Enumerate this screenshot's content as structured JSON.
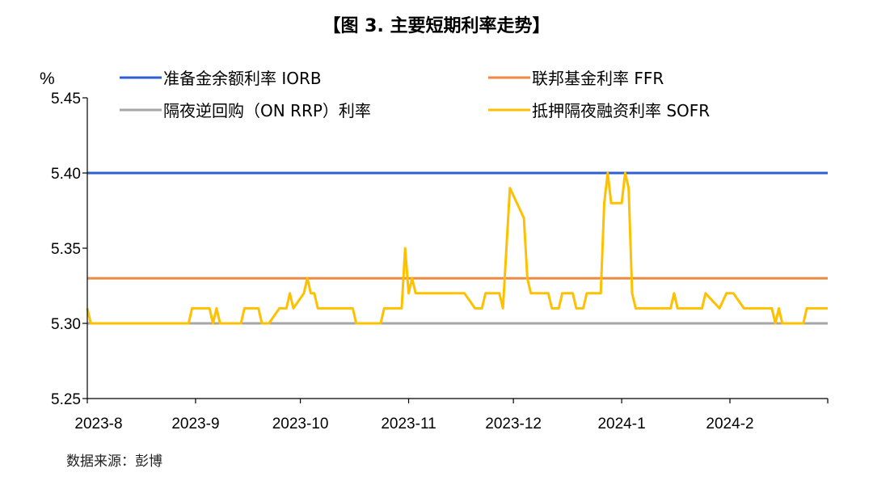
{
  "page": {
    "title": "【图 3. 主要短期利率走势】",
    "source": "数据来源：彭博"
  },
  "chart_data": {
    "type": "line",
    "title": "【图 3. 主要短期利率走势】",
    "ylabel": "%",
    "xlabel": "",
    "ylim": [
      5.25,
      5.45
    ],
    "yticks": [
      "5.25",
      "5.30",
      "5.35",
      "5.40",
      "5.45"
    ],
    "xlim": [
      "2023-08-01",
      "2024-02-29"
    ],
    "xticks": [
      {
        "date": "2023-08-01",
        "label": "2023-8"
      },
      {
        "date": "2023-09-01",
        "label": "2023-9"
      },
      {
        "date": "2023-10-01",
        "label": "2023-10"
      },
      {
        "date": "2023-11-01",
        "label": "2023-11"
      },
      {
        "date": "2023-12-01",
        "label": "2023-12"
      },
      {
        "date": "2024-01-01",
        "label": "2024-1"
      },
      {
        "date": "2024-02-01",
        "label": "2024-2"
      }
    ],
    "grid": false,
    "legend_position": "top",
    "series": [
      {
        "name": "准备金余额利率 IORB",
        "color": "#2e5fd1",
        "points": [
          [
            "2023-08-01",
            5.4
          ],
          [
            "2024-02-29",
            5.4
          ]
        ]
      },
      {
        "name": "联邦基金利率 FFR",
        "color": "#ee8a45",
        "points": [
          [
            "2023-08-01",
            5.33
          ],
          [
            "2024-02-29",
            5.33
          ]
        ]
      },
      {
        "name": "隔夜逆回购（ON RRP）利率",
        "color": "#a6a6a6",
        "points": [
          [
            "2023-08-01",
            5.3
          ],
          [
            "2024-02-29",
            5.3
          ]
        ]
      },
      {
        "name": "抵押隔夜融资利率 SOFR",
        "color": "#ffc000",
        "points": [
          [
            "2023-08-01",
            5.31
          ],
          [
            "2023-08-02",
            5.3
          ],
          [
            "2023-08-30",
            5.3
          ],
          [
            "2023-08-31",
            5.31
          ],
          [
            "2023-09-05",
            5.31
          ],
          [
            "2023-09-06",
            5.3
          ],
          [
            "2023-09-07",
            5.31
          ],
          [
            "2023-09-08",
            5.3
          ],
          [
            "2023-09-14",
            5.3
          ],
          [
            "2023-09-15",
            5.31
          ],
          [
            "2023-09-19",
            5.31
          ],
          [
            "2023-09-20",
            5.3
          ],
          [
            "2023-09-22",
            5.3
          ],
          [
            "2023-09-25",
            5.31
          ],
          [
            "2023-09-27",
            5.31
          ],
          [
            "2023-09-28",
            5.32
          ],
          [
            "2023-09-29",
            5.31
          ],
          [
            "2023-10-02",
            5.32
          ],
          [
            "2023-10-03",
            5.33
          ],
          [
            "2023-10-04",
            5.32
          ],
          [
            "2023-10-05",
            5.32
          ],
          [
            "2023-10-06",
            5.31
          ],
          [
            "2023-10-16",
            5.31
          ],
          [
            "2023-10-17",
            5.3
          ],
          [
            "2023-10-24",
            5.3
          ],
          [
            "2023-10-25",
            5.31
          ],
          [
            "2023-10-30",
            5.31
          ],
          [
            "2023-10-31",
            5.35
          ],
          [
            "2023-11-01",
            5.32
          ],
          [
            "2023-11-02",
            5.33
          ],
          [
            "2023-11-03",
            5.32
          ],
          [
            "2023-11-17",
            5.32
          ],
          [
            "2023-11-20",
            5.31
          ],
          [
            "2023-11-22",
            5.31
          ],
          [
            "2023-11-23",
            5.32
          ],
          [
            "2023-11-27",
            5.32
          ],
          [
            "2023-11-28",
            5.31
          ],
          [
            "2023-11-30",
            5.39
          ],
          [
            "2023-12-04",
            5.37
          ],
          [
            "2023-12-05",
            5.33
          ],
          [
            "2023-12-06",
            5.32
          ],
          [
            "2023-12-11",
            5.32
          ],
          [
            "2023-12-12",
            5.31
          ],
          [
            "2023-12-14",
            5.31
          ],
          [
            "2023-12-15",
            5.32
          ],
          [
            "2023-12-18",
            5.32
          ],
          [
            "2023-12-19",
            5.31
          ],
          [
            "2023-12-21",
            5.31
          ],
          [
            "2023-12-22",
            5.32
          ],
          [
            "2023-12-25",
            5.32
          ],
          [
            "2023-12-26",
            5.32
          ],
          [
            "2023-12-27",
            5.38
          ],
          [
            "2023-12-28",
            5.4
          ],
          [
            "2023-12-29",
            5.38
          ],
          [
            "2024-01-01",
            5.38
          ],
          [
            "2024-01-02",
            5.4
          ],
          [
            "2024-01-03",
            5.39
          ],
          [
            "2024-01-04",
            5.32
          ],
          [
            "2024-01-05",
            5.31
          ],
          [
            "2024-01-15",
            5.31
          ],
          [
            "2024-01-16",
            5.32
          ],
          [
            "2024-01-17",
            5.31
          ],
          [
            "2024-01-24",
            5.31
          ],
          [
            "2024-01-25",
            5.32
          ],
          [
            "2024-01-29",
            5.31
          ],
          [
            "2024-01-31",
            5.32
          ],
          [
            "2024-02-02",
            5.32
          ],
          [
            "2024-02-05",
            5.31
          ],
          [
            "2024-02-13",
            5.31
          ],
          [
            "2024-02-14",
            5.3
          ],
          [
            "2024-02-15",
            5.31
          ],
          [
            "2024-02-16",
            5.3
          ],
          [
            "2024-02-22",
            5.3
          ],
          [
            "2024-02-23",
            5.31
          ],
          [
            "2024-02-29",
            5.31
          ]
        ]
      }
    ]
  }
}
